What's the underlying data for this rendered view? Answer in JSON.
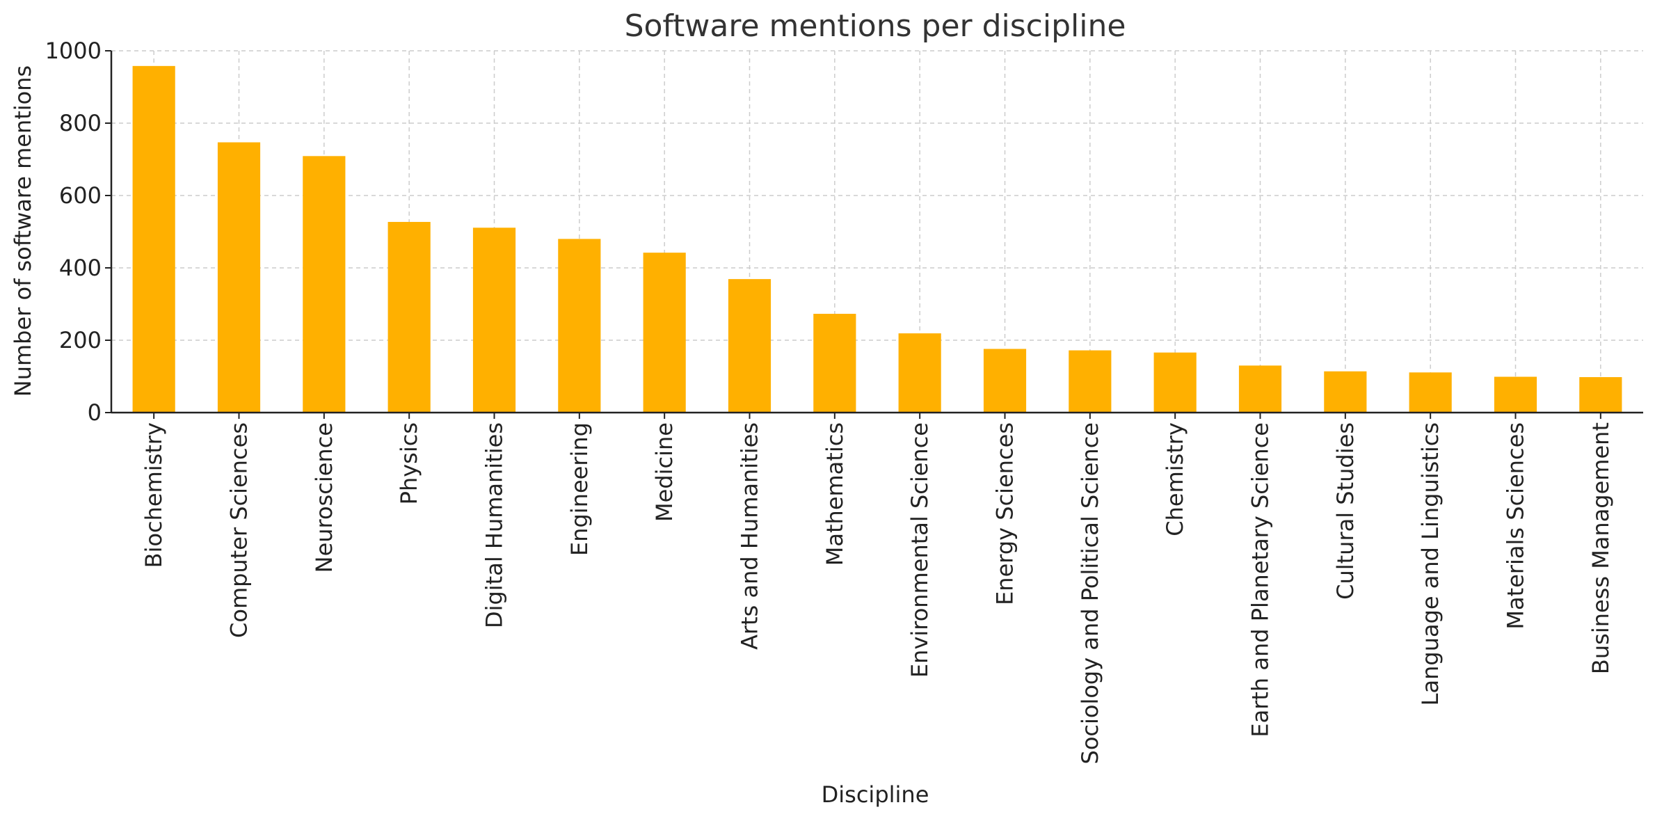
{
  "chart_data": {
    "type": "bar",
    "title": "Software mentions per discipline",
    "xlabel": "Discipline",
    "ylabel": "Number of software mentions",
    "ylim": [
      0,
      1000
    ],
    "yticks": [
      0,
      200,
      400,
      600,
      800,
      1000
    ],
    "grid": true,
    "categories": [
      "Biochemistry",
      "Computer Sciences",
      "Neuroscience",
      "Physics",
      "Digital Humanities",
      "Engineering",
      "Medicine",
      "Arts and Humanities",
      "Mathematics",
      "Environmental Science",
      "Energy Sciences",
      "Sociology and Political Science",
      "Chemistry",
      "Earth and Planetary Science",
      "Cultural Studies",
      "Language and Linguistics",
      "Materials Sciences",
      "Business Management"
    ],
    "values": [
      958,
      747,
      709,
      527,
      511,
      480,
      442,
      369,
      273,
      219,
      176,
      172,
      166,
      130,
      114,
      111,
      99,
      98
    ],
    "bar_color": "#FFB000"
  }
}
